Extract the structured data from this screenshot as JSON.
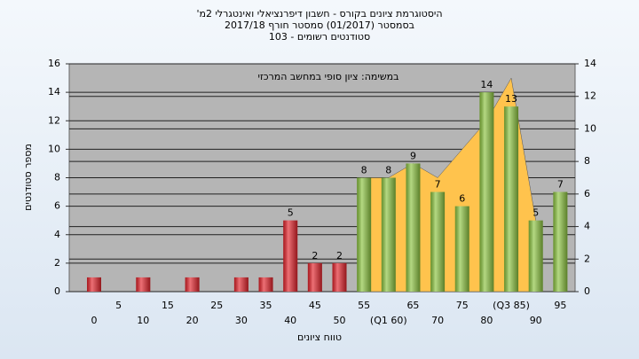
{
  "chart_data": {
    "type": "bar",
    "title": "היסטוגרמת ציונים בקורס - חשבון דיפרנציאלי ואינטגרלי 2מ'",
    "subtitle": "בסמסטר (01/2017) סמסטר חורף 2017/18",
    "subtitle2": "סטודנטים רשומים - 103",
    "annotation": "במשימה: ציון סופי במחשב המרכזי",
    "x_label": "טווח ציונים",
    "y_label": "מספר סטודנטים",
    "categories": [
      "0",
      "5",
      "10",
      "15",
      "20",
      "25",
      "30",
      "35",
      "40",
      "45",
      "50",
      "55",
      "(Q1 60)",
      "65",
      "70",
      "75",
      "80",
      "(Q3 85)",
      "90",
      "95"
    ],
    "values": [
      1,
      0,
      1,
      0,
      1,
      0,
      1,
      1,
      5,
      2,
      2,
      8,
      8,
      9,
      7,
      6,
      14,
      13,
      5,
      7
    ],
    "value_labels": [
      null,
      null,
      null,
      null,
      null,
      null,
      null,
      null,
      "5",
      "2",
      "2",
      "8",
      "8",
      "9",
      "7",
      "6",
      "14",
      "13",
      "5",
      "7"
    ],
    "colors": [
      "#e3232b",
      "#e3232b",
      "#e3232b",
      "#e3232b",
      "#e3232b",
      "#e3232b",
      "#e3232b",
      "#e3232b",
      "#e3232b",
      "#e3232b",
      "#e3232b",
      "#8cc440",
      "#8cc440",
      "#8cc440",
      "#8cc440",
      "#8cc440",
      "#8cc440",
      "#8cc440",
      "#8cc440",
      "#8cc440"
    ],
    "area": {
      "color": "#ffc34d",
      "values": [
        null,
        null,
        null,
        null,
        null,
        null,
        null,
        null,
        null,
        null,
        null,
        8,
        8,
        9,
        8,
        10,
        12,
        15,
        5,
        null
      ]
    },
    "ylim": [
      0,
      16
    ],
    "yticks": [
      0,
      2,
      4,
      6,
      8,
      10,
      12,
      14,
      16
    ],
    "y2lim": [
      0,
      14
    ],
    "y2ticks": [
      0,
      2,
      4,
      6,
      8,
      10,
      12,
      14
    ],
    "grid": true
  }
}
